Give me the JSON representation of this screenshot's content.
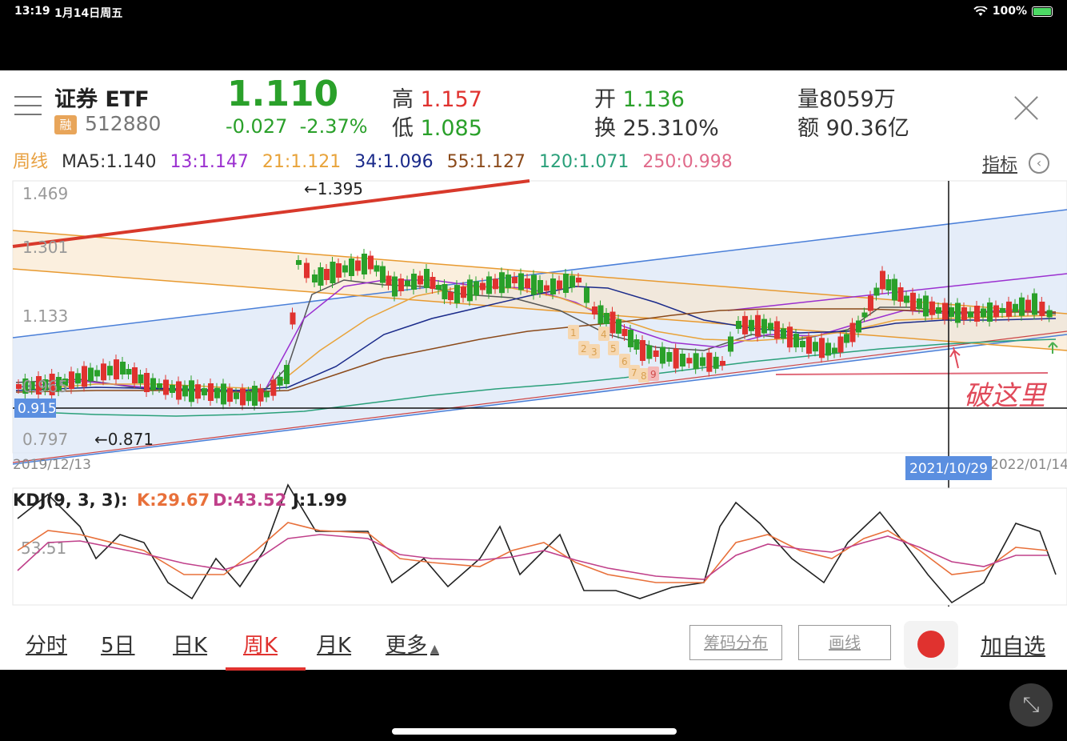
{
  "status_bar": {
    "time": "13:19",
    "date": "1月14日周五",
    "battery": "100%"
  },
  "header": {
    "name": "证券 ETF",
    "badge": "融",
    "code": "512880",
    "price": "1.110",
    "change": "-0.027",
    "change_pct": "-2.37%",
    "high_label": "高",
    "high": "1.157",
    "low_label": "低",
    "low": "1.085",
    "open_label": "开",
    "open": "1.136",
    "turnover_label": "换",
    "turnover": "25.310%",
    "volume_label": "量",
    "volume": "8059万",
    "amount_label": "额",
    "amount": "90.36亿"
  },
  "ma_bar": {
    "period": "周线",
    "ma5": "MA5:1.140",
    "ma13": "13:1.147",
    "ma21": "21:1.121",
    "ma34": "34:1.096",
    "ma55": "55:1.127",
    "ma120": "120:1.071",
    "ma250": "250:0.998",
    "indicator_label": "指标",
    "colors": {
      "period": "#e8a040",
      "ma5": "#333333",
      "ma13": "#9b30d0",
      "ma21": "#e8a33a",
      "ma34": "#1a2a8a",
      "ma55": "#8b4a1a",
      "ma120": "#2aa07a",
      "ma250": "#e06a8a"
    }
  },
  "kdj": {
    "label": "KDJ(9, 3, 3):",
    "k": "K:29.67",
    "d": "D:43.52",
    "j": "J:1.99"
  },
  "chart_data": {
    "type": "candlestick",
    "y_ticks": [
      "1.469",
      "1.301",
      "1.133",
      "0.965",
      "0.797"
    ],
    "ylim": [
      0.797,
      1.469
    ],
    "crosshair_price": "0.915",
    "crosshair_date": "2021/10/29",
    "x_start_label": "2019/12/13",
    "x_end_label": "2022/01/14",
    "max_annotation": "←1.395",
    "min_annotation": "←0.871",
    "handwritten_note": "破这里",
    "kdj_tick": "53.51",
    "nine_count_labels": [
      "1",
      "2",
      "3",
      "4",
      "5",
      "6",
      "7",
      "8",
      "9"
    ],
    "colors": {
      "up": "#e0322f",
      "down": "#2aa02a",
      "k": "#e8703a",
      "d": "#c0408a",
      "j": "#222222"
    }
  },
  "tabs": [
    {
      "label": "分时"
    },
    {
      "label": "5日"
    },
    {
      "label": "日K"
    },
    {
      "label": "周K"
    },
    {
      "label": "月K"
    },
    {
      "label": "更多"
    }
  ],
  "active_tab": "周K",
  "buttons": {
    "chips": "筹码分布",
    "draw": "画线",
    "add_fav": "加自选"
  }
}
